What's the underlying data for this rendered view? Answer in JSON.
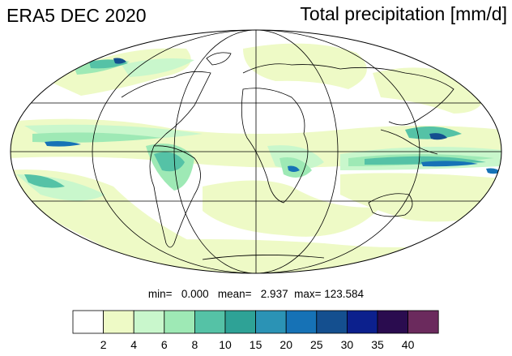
{
  "header": {
    "title_left": "ERA5 DEC 2020",
    "title_right": "Total precipitation [mm/d]"
  },
  "stats": {
    "min_label": "min=",
    "min_value": "0.000",
    "mean_label": "mean=",
    "mean_value": "2.937",
    "max_label": "max=",
    "max_value": "123.584"
  },
  "colorbar": {
    "bins": [
      {
        "color": "#ffffff",
        "label": "2"
      },
      {
        "color": "#eefac6",
        "label": "4"
      },
      {
        "color": "#c9f7cc",
        "label": "6"
      },
      {
        "color": "#9ee9b5",
        "label": "8"
      },
      {
        "color": "#55c2a6",
        "label": "10"
      },
      {
        "color": "#2ea296",
        "label": "15"
      },
      {
        "color": "#2b93b5",
        "label": "20"
      },
      {
        "color": "#1672b6",
        "label": "25"
      },
      {
        "color": "#144f8f",
        "label": "30"
      },
      {
        "color": "#0c208d",
        "label": "35"
      },
      {
        "color": "#2a0c4f",
        "label": "40"
      },
      {
        "color": "#6b2a5d",
        "label": ""
      }
    ]
  },
  "map": {
    "projection": "Mollweide",
    "ocean_color": "#ffffff",
    "coast_color": "#000000"
  }
}
